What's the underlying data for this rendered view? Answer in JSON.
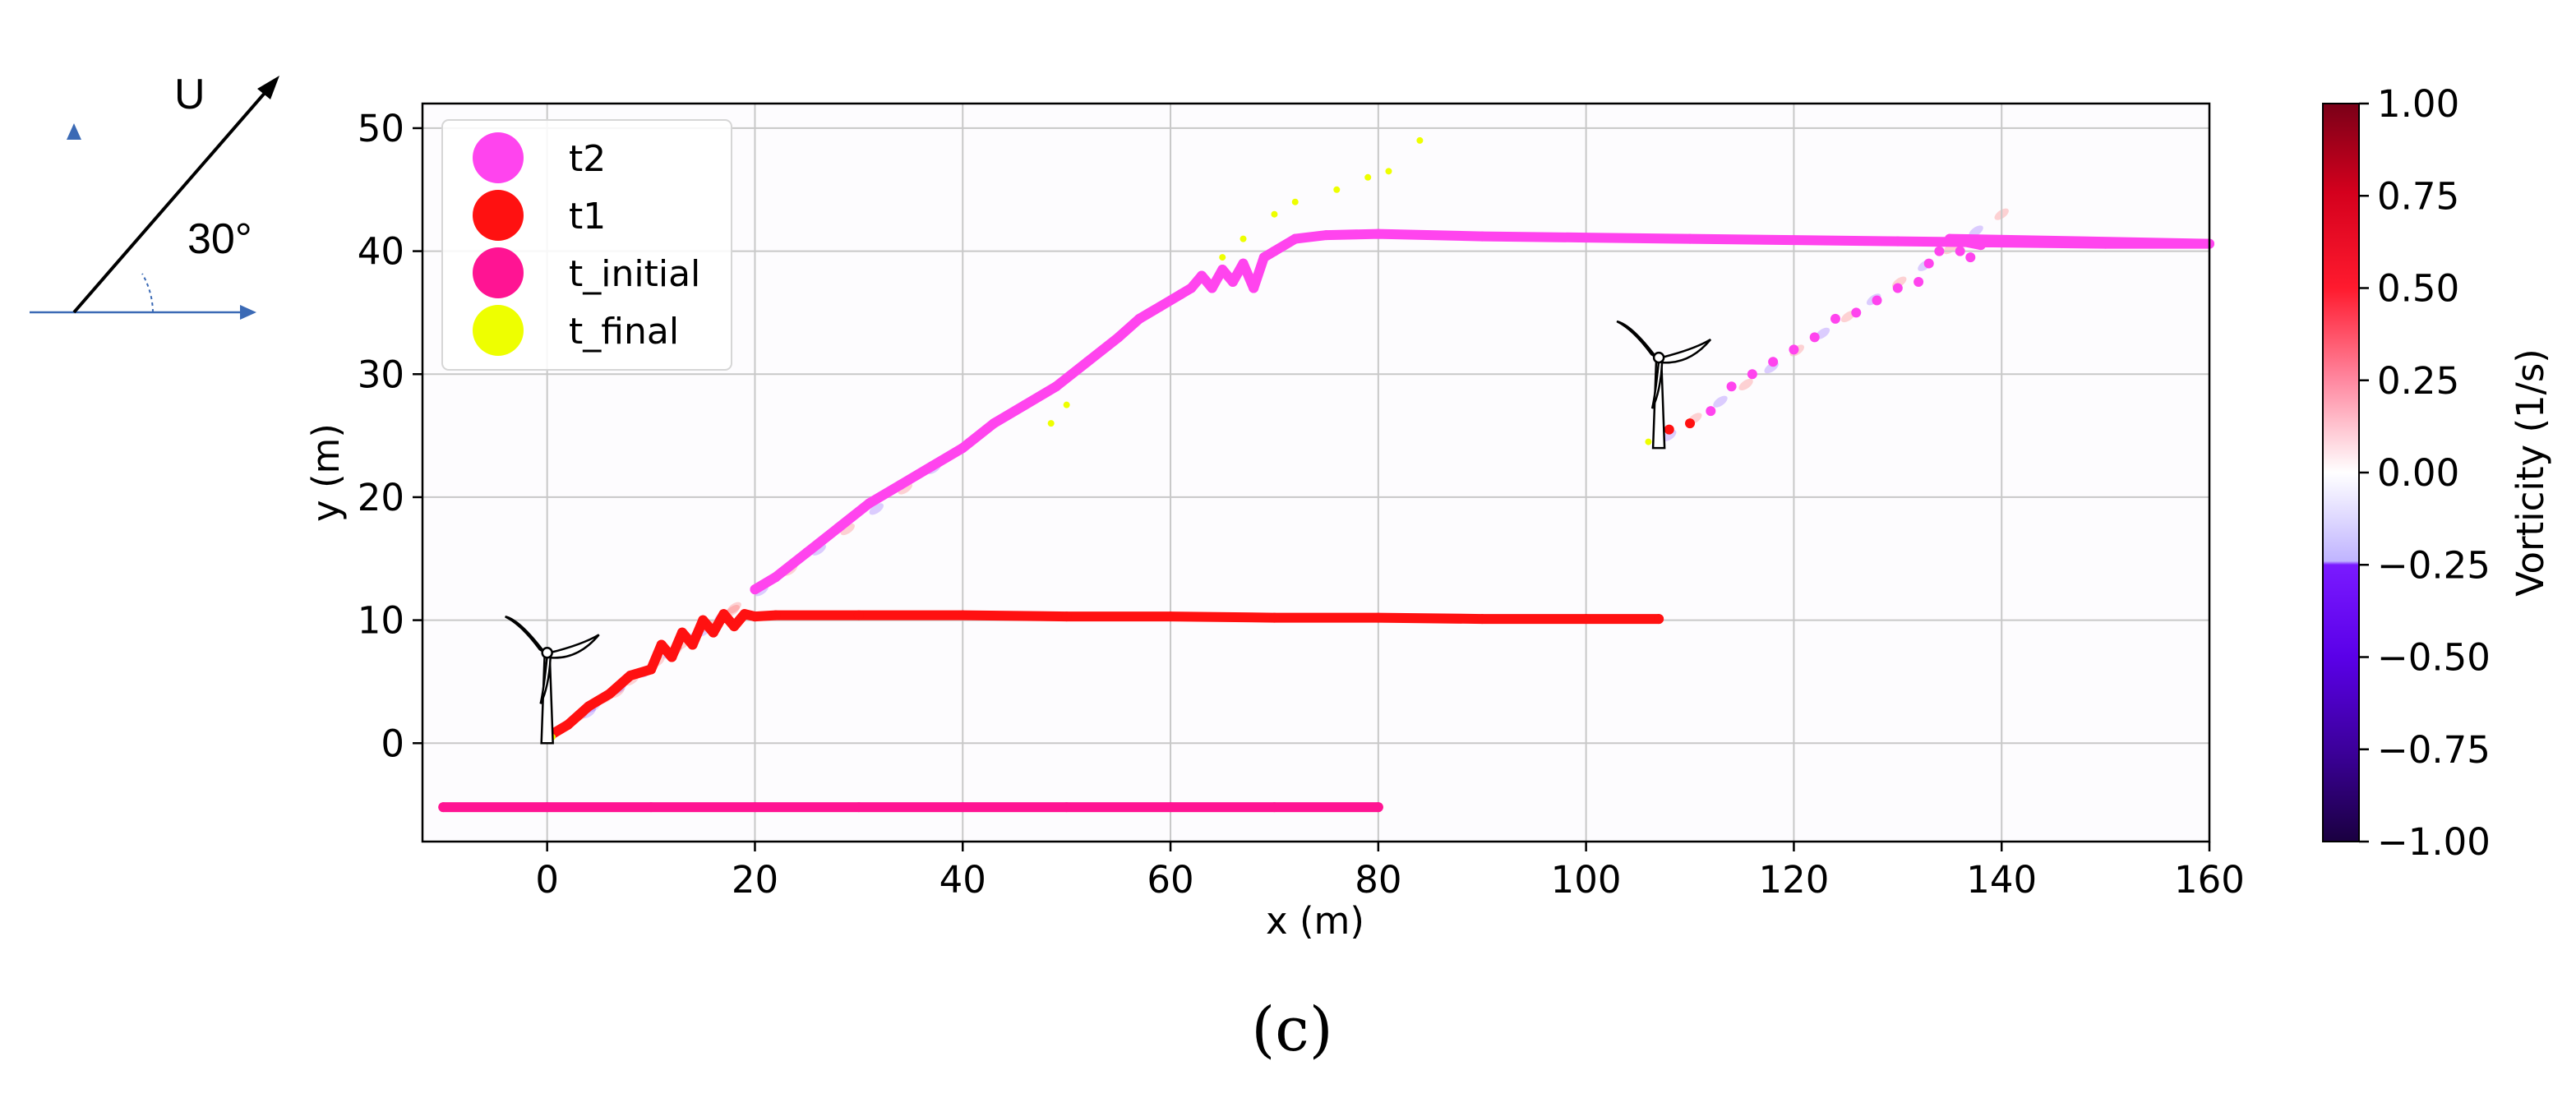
{
  "panel_label": "(c)",
  "inset": {
    "velocity_label": "U",
    "angle_label": "30°"
  },
  "colors": {
    "t2": "#ff44ee",
    "t1": "#ff1111",
    "t_initial": "#ff1493",
    "t_final": "#eeff00",
    "grid": "#c8c8c8",
    "inset_arrow": "#3b6ab5"
  },
  "chart_data": {
    "type": "scatter",
    "xlabel": "x (m)",
    "ylabel": "y (m)",
    "xlim": [
      -12,
      160
    ],
    "ylim": [
      -8,
      52
    ],
    "xticks": [
      0,
      20,
      40,
      60,
      80,
      100,
      120,
      140,
      160
    ],
    "yticks": [
      0,
      10,
      20,
      30,
      40,
      50
    ],
    "grid": true,
    "legend_position": "top-left",
    "series": [
      {
        "name": "t2",
        "points": [
          [
            20,
            12.5
          ],
          [
            22,
            13.5
          ],
          [
            25,
            15.5
          ],
          [
            28,
            17.5
          ],
          [
            31,
            19.5
          ],
          [
            34,
            21
          ],
          [
            37,
            22.5
          ],
          [
            40,
            24
          ],
          [
            43,
            26
          ],
          [
            46,
            27.5
          ],
          [
            49,
            29
          ],
          [
            52,
            31
          ],
          [
            55,
            33
          ],
          [
            57,
            34.5
          ],
          [
            59,
            35.5
          ],
          [
            61,
            36.5
          ],
          [
            62,
            37
          ],
          [
            63,
            38
          ],
          [
            64,
            37
          ],
          [
            65,
            38.5
          ],
          [
            66,
            37.5
          ],
          [
            67,
            39
          ],
          [
            68,
            37
          ],
          [
            69,
            39.5
          ],
          [
            70,
            40
          ],
          [
            72,
            41
          ],
          [
            75,
            41.3
          ],
          [
            80,
            41.4
          ],
          [
            90,
            41.2
          ],
          [
            100,
            41.1
          ],
          [
            110,
            41
          ],
          [
            120,
            40.9
          ],
          [
            130,
            40.8
          ],
          [
            140,
            40.7
          ],
          [
            150,
            40.6
          ],
          [
            160,
            40.6
          ],
          [
            112,
            27
          ],
          [
            114,
            29
          ],
          [
            116,
            30
          ],
          [
            118,
            31
          ],
          [
            120,
            32
          ],
          [
            122,
            33
          ],
          [
            124,
            34.5
          ],
          [
            126,
            35
          ],
          [
            128,
            36
          ],
          [
            130,
            37
          ],
          [
            132,
            37.5
          ],
          [
            133,
            39
          ],
          [
            134,
            40
          ],
          [
            135,
            41
          ],
          [
            136,
            40
          ],
          [
            137,
            39.5
          ],
          [
            138,
            40.5
          ]
        ]
      },
      {
        "name": "t1",
        "points": [
          [
            0,
            0.5
          ],
          [
            2,
            1.5
          ],
          [
            4,
            3
          ],
          [
            6,
            4
          ],
          [
            8,
            5.5
          ],
          [
            10,
            6
          ],
          [
            11,
            8
          ],
          [
            12,
            7
          ],
          [
            13,
            9
          ],
          [
            14,
            8
          ],
          [
            15,
            10
          ],
          [
            16,
            9
          ],
          [
            17,
            10.5
          ],
          [
            18,
            9.5
          ],
          [
            19,
            10.5
          ],
          [
            20,
            10.3
          ],
          [
            22,
            10.4
          ],
          [
            30,
            10.4
          ],
          [
            40,
            10.4
          ],
          [
            50,
            10.3
          ],
          [
            60,
            10.3
          ],
          [
            70,
            10.2
          ],
          [
            80,
            10.2
          ],
          [
            90,
            10.1
          ],
          [
            100,
            10.1
          ],
          [
            107,
            10.1
          ],
          [
            108,
            25.5
          ],
          [
            110,
            26
          ]
        ]
      },
      {
        "name": "t_initial",
        "points": [
          [
            -10,
            -5.2
          ],
          [
            0,
            -5.2
          ],
          [
            10,
            -5.2
          ],
          [
            20,
            -5.2
          ],
          [
            30,
            -5.2
          ],
          [
            40,
            -5.2
          ],
          [
            50,
            -5.2
          ],
          [
            60,
            -5.2
          ],
          [
            70,
            -5.2
          ],
          [
            80,
            -5.2
          ]
        ]
      },
      {
        "name": "t_final",
        "points": [
          [
            0.5,
            0.5
          ],
          [
            48.5,
            26
          ],
          [
            50,
            27.5
          ],
          [
            65,
            39.5
          ],
          [
            67,
            41
          ],
          [
            70,
            43
          ],
          [
            72,
            44
          ],
          [
            76,
            45
          ],
          [
            79,
            46
          ],
          [
            81,
            46.5
          ],
          [
            84,
            49
          ],
          [
            106,
            24.5
          ]
        ]
      }
    ],
    "colorbar": {
      "label": "Vorticity (1/s)",
      "min": -1.0,
      "max": 1.0,
      "ticks": [
        "1.00",
        "0.75",
        "0.50",
        "0.25",
        "0.00",
        "−0.25",
        "−0.50",
        "−0.75",
        "−1.00"
      ],
      "tick_values": [
        1.0,
        0.75,
        0.5,
        0.25,
        0.0,
        -0.25,
        -0.5,
        -0.75,
        -1.0
      ]
    },
    "turbines": [
      {
        "x": 0,
        "y": 0
      },
      {
        "x": 107,
        "y": 24
      }
    ]
  }
}
